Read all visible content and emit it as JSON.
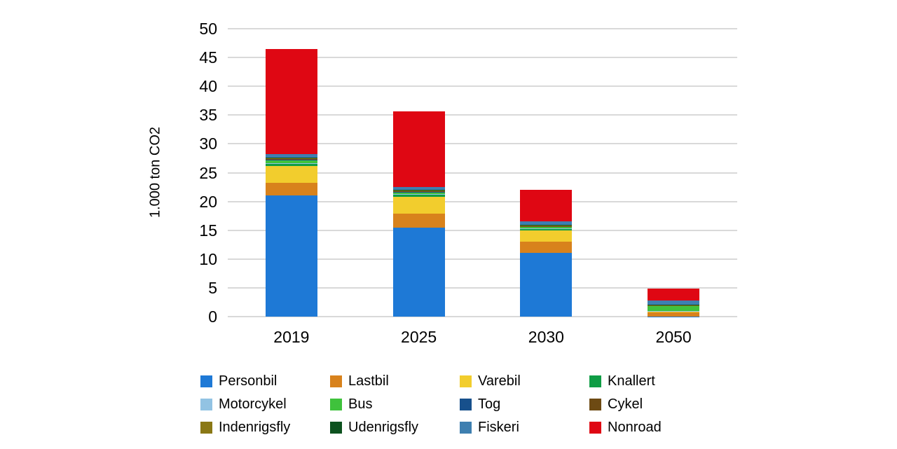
{
  "page": {
    "background_color": "#ffffff",
    "text_color": "#000000"
  },
  "y_axis": {
    "label": "1.000 ton CO2"
  },
  "chart_data": {
    "type": "bar",
    "stacked": true,
    "title": "",
    "xlabel": "",
    "ylabel": "1.000 ton CO2",
    "ylim": [
      0,
      50
    ],
    "yticks": [
      0,
      5,
      10,
      15,
      20,
      25,
      30,
      35,
      40,
      45,
      50
    ],
    "grid": true,
    "gridline_color": "#d9d9d9",
    "legend_position": "bottom",
    "categories": [
      "2019",
      "2025",
      "2030",
      "2050"
    ],
    "series": [
      {
        "name": "Personbil",
        "color": "#1e79d6",
        "values": [
          21.0,
          15.45,
          11.05,
          0.02
        ]
      },
      {
        "name": "Lastbil",
        "color": "#d8821c",
        "values": [
          2.2,
          2.45,
          1.95,
          0.82
        ]
      },
      {
        "name": "Varebil",
        "color": "#f2cd2d",
        "values": [
          2.9,
          2.95,
          2.0,
          0.05
        ]
      },
      {
        "name": "Knallert",
        "color": "#0f9d45",
        "values": [
          0.55,
          0.35,
          0.3,
          0.06
        ]
      },
      {
        "name": "Motorcykel",
        "color": "#92c3e3",
        "values": [
          0.05,
          0.05,
          0.04,
          0.01
        ]
      },
      {
        "name": "Bus",
        "color": "#3fc23c",
        "values": [
          0.55,
          0.4,
          0.32,
          0.9
        ]
      },
      {
        "name": "Tog",
        "color": "#17508c",
        "values": [
          0.05,
          0.05,
          0.04,
          0.05
        ]
      },
      {
        "name": "Cykel",
        "color": "#6d4a13",
        "values": [
          0.05,
          0.03,
          0.03,
          0.02
        ]
      },
      {
        "name": "Indenrigsfly",
        "color": "#8a7815",
        "values": [
          0.25,
          0.22,
          0.2,
          0.05
        ]
      },
      {
        "name": "Udenrigsfly",
        "color": "#0d521f",
        "values": [
          0.05,
          0.05,
          0.05,
          0.08
        ]
      },
      {
        "name": "Fiskeri",
        "color": "#3e7fb0",
        "values": [
          0.55,
          0.55,
          0.55,
          0.72
        ]
      },
      {
        "name": "Nonroad",
        "color": "#df0713",
        "values": [
          18.3,
          13.1,
          5.5,
          2.1
        ]
      }
    ]
  }
}
